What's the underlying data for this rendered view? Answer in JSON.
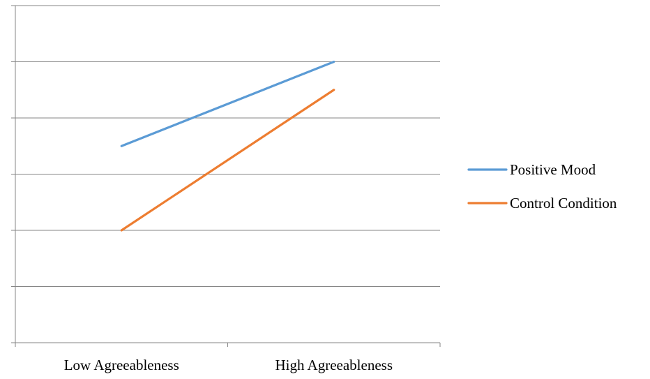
{
  "chart_data": {
    "type": "line",
    "title": "",
    "xlabel": "",
    "ylabel": "",
    "categories": [
      "Low Agreeableness",
      "High Agreeableness"
    ],
    "ylim": [
      0,
      6
    ],
    "y_gridlines": 6,
    "grid": true,
    "legend_position": "right",
    "series": [
      {
        "name": "Positive Mood",
        "values": [
          3.5,
          5.0
        ],
        "color": "#5B9BD5"
      },
      {
        "name": "Control Condition",
        "values": [
          2.0,
          4.5
        ],
        "color": "#ED7D31"
      }
    ]
  }
}
